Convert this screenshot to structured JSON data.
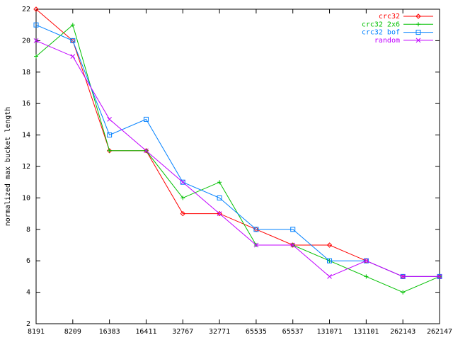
{
  "chart_data": {
    "type": "line",
    "y_label": "normalized max bucket length",
    "categories": [
      "8191",
      "8209",
      "16383",
      "16411",
      "32767",
      "32771",
      "65535",
      "65537",
      "131071",
      "131101",
      "262143",
      "262147"
    ],
    "series": [
      {
        "name": "crc32",
        "color": "#ff0000",
        "marker": "diamond",
        "values": [
          22,
          20,
          13,
          13,
          9,
          9,
          8,
          7,
          7,
          6,
          5,
          5
        ]
      },
      {
        "name": "crc32 2x6",
        "color": "#00c000",
        "marker": "plus",
        "values": [
          19,
          21,
          13,
          13,
          10,
          11,
          7,
          7,
          6,
          5,
          4,
          5
        ]
      },
      {
        "name": "crc32 bof",
        "color": "#0080ff",
        "marker": "square",
        "values": [
          21,
          20,
          14,
          15,
          11,
          10,
          8,
          8,
          6,
          6,
          5,
          5
        ]
      },
      {
        "name": "random",
        "color": "#c000ff",
        "marker": "cross",
        "values": [
          20,
          19,
          15,
          13,
          11,
          9,
          7,
          7,
          5,
          6,
          5,
          5
        ]
      }
    ],
    "ylim": [
      2,
      22
    ],
    "yticks": [
      2,
      4,
      6,
      8,
      10,
      12,
      14,
      16,
      18,
      20,
      22
    ],
    "legend": "top-right"
  }
}
